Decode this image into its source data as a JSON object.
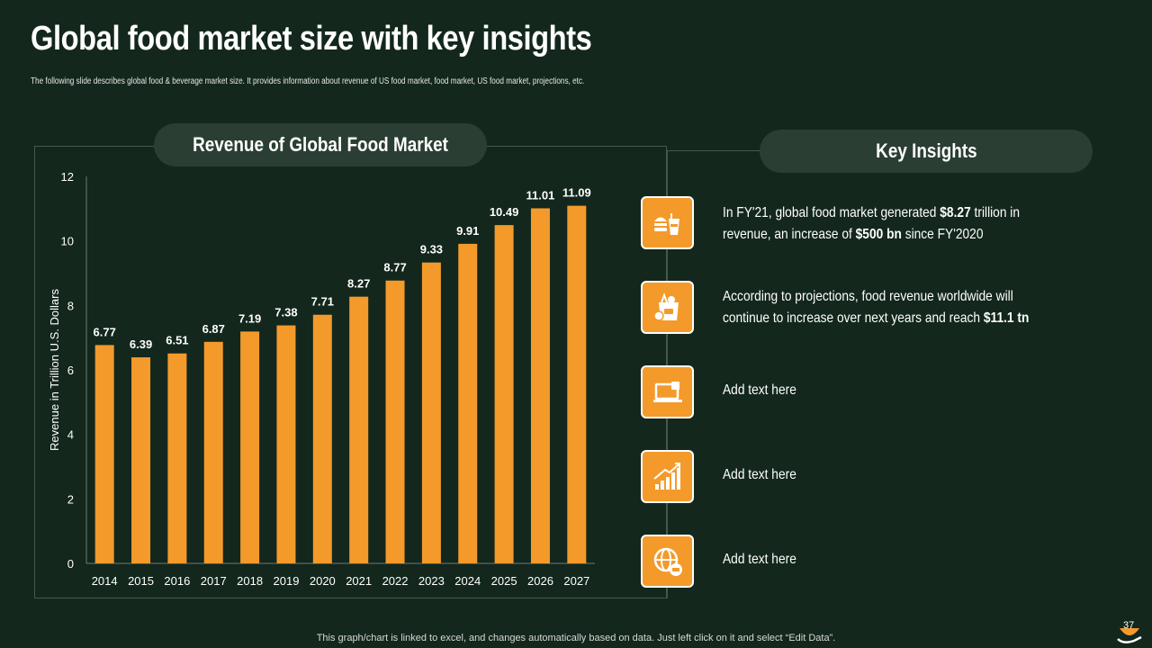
{
  "header": {
    "title": "Global food market size with key insights",
    "subtitle": "The following  slide  describes  global  food  & beverage  market  size.  It provides  information  about  revenue  of US food  market,  food  market,  US food  market,  projections,  etc."
  },
  "chart_data": {
    "type": "bar",
    "title": "Revenue of Global Food Market",
    "xlabel": "",
    "ylabel": "Revenue in Trillion U.S. Dollars",
    "ylim": [
      0,
      12
    ],
    "yticks": [
      0,
      2,
      4,
      6,
      8,
      10,
      12
    ],
    "grid": false,
    "bar_color": "#f39a2b",
    "categories": [
      "2014",
      "2015",
      "2016",
      "2017",
      "2018",
      "2019",
      "2020",
      "2021",
      "2022",
      "2023",
      "2024",
      "2025",
      "2026",
      "2027"
    ],
    "values": [
      6.77,
      6.39,
      6.51,
      6.87,
      7.19,
      7.38,
      7.71,
      8.27,
      8.77,
      9.33,
      9.91,
      10.49,
      11.01,
      11.09
    ],
    "labels": [
      "6.77",
      "6.39",
      "6.51",
      "6.87",
      "7.19",
      "7.38",
      "7.71",
      "8.27",
      "8.77",
      "9.33",
      "9.91",
      "10.49",
      "11.01",
      "11.09"
    ]
  },
  "insights": {
    "title": "Key Insights",
    "items": [
      {
        "icon": "fast-food-icon",
        "pre": "In FY'21, global food market generated ",
        "b1": "$8.27",
        "mid": " trillion in revenue, an increase of ",
        "b2": "$500  bn",
        "post": " since FY'2020"
      },
      {
        "icon": "grocery-bag-icon",
        "pre": "According to projections, food revenue worldwide will continue to increase over next years and reach ",
        "b1": "$11.1 tn",
        "mid": "",
        "b2": "",
        "post": ""
      },
      {
        "icon": "laptop-icon",
        "pre": "Add text here",
        "b1": "",
        "mid": "",
        "b2": "",
        "post": ""
      },
      {
        "icon": "growth-chart-icon",
        "pre": "Add text here",
        "b1": "",
        "mid": "",
        "b2": "",
        "post": ""
      },
      {
        "icon": "global-shopping-icon",
        "pre": "Add text here",
        "b1": "",
        "mid": "",
        "b2": "",
        "post": ""
      }
    ]
  },
  "footer": {
    "note": "This graph/chart is linked to excel,  and changes automatically based on data. Just left click on it and select “Edit Data”.",
    "page_number": "37"
  },
  "colors": {
    "background": "#13271d",
    "accent": "#f39a2b",
    "pill": "#2a3e33"
  }
}
